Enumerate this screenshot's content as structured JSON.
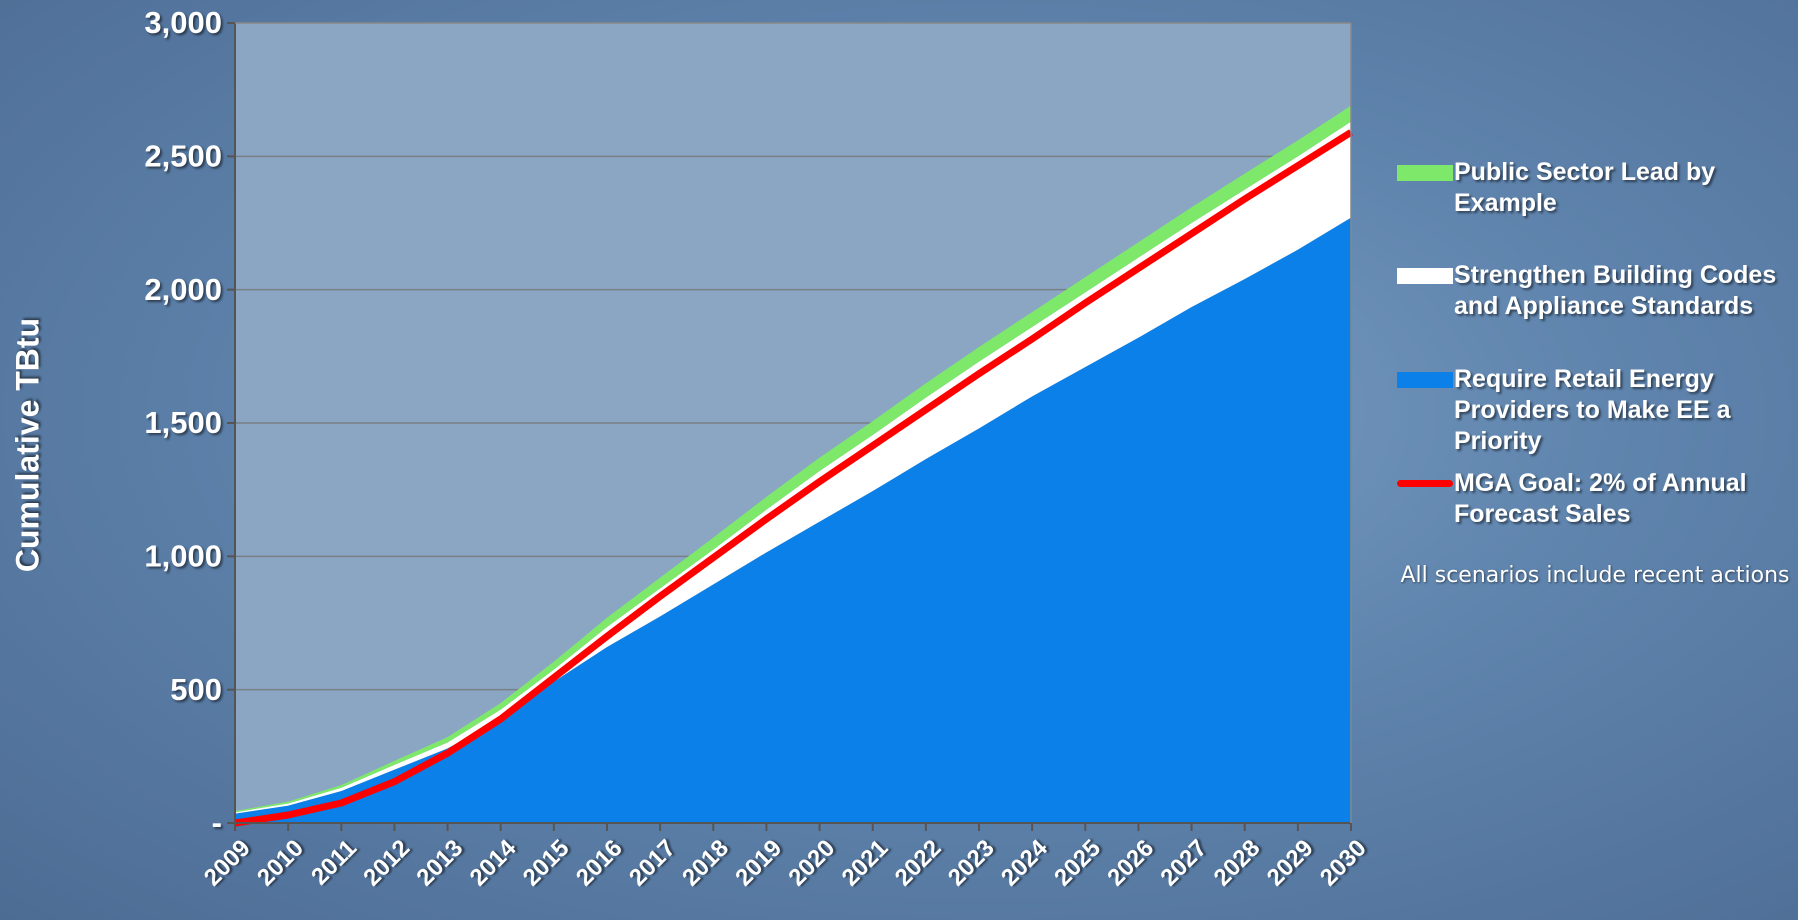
{
  "chart_data": {
    "type": "stacked_area",
    "y_label": "Cumulative TBtu",
    "annotation": "All scenarios include recent actions",
    "categories": [
      "2009",
      "2010",
      "2011",
      "2012",
      "2013",
      "2014",
      "2015",
      "2016",
      "2017",
      "2018",
      "2019",
      "2020",
      "2021",
      "2022",
      "2023",
      "2024",
      "2025",
      "2026",
      "2027",
      "2028",
      "2029",
      "2030"
    ],
    "series": [
      {
        "name": "Require Retail Energy Providers to Make EE a Priority",
        "color": "#0a80e8",
        "values": [
          35,
          65,
          120,
          200,
          280,
          390,
          530,
          660,
          775,
          895,
          1015,
          1130,
          1245,
          1365,
          1480,
          1600,
          1710,
          1820,
          1935,
          2040,
          2150,
          2270
        ]
      },
      {
        "name": "Strengthen Building Codes and Appliance Standards",
        "color": "#ffffff",
        "values": [
          5,
          8,
          12,
          18,
          22,
          35,
          45,
          75,
          105,
          130,
          160,
          190,
          210,
          230,
          250,
          260,
          280,
          300,
          315,
          335,
          350,
          360
        ]
      },
      {
        "name": "Public Sector Lead by Example",
        "color": "#7ee86a",
        "values": [
          5,
          7,
          10,
          15,
          20,
          25,
          30,
          35,
          40,
          45,
          48,
          50,
          52,
          54,
          55,
          56,
          57,
          58,
          59,
          60,
          60,
          60
        ]
      }
    ],
    "lines": [
      {
        "name": "MGA Goal: 2% of Annual Forecast Sales",
        "color": "#ff0000",
        "values": [
          0,
          30,
          75,
          155,
          262,
          390,
          545,
          700,
          850,
          995,
          1140,
          1280,
          1415,
          1550,
          1685,
          1815,
          1950,
          2080,
          2210,
          2340,
          2465,
          2590
        ]
      }
    ],
    "ylim": [
      0,
      3000
    ],
    "yticks": [
      {
        "value": 0,
        "label": "-"
      },
      500,
      {
        "value": 1000,
        "label": "1,000"
      },
      {
        "value": 1500,
        "label": "1,500"
      },
      {
        "value": 2000,
        "label": "2,000"
      },
      {
        "value": 2500,
        "label": "2,500"
      },
      {
        "value": 3000,
        "label": "3,000"
      }
    ],
    "grid": true
  }
}
